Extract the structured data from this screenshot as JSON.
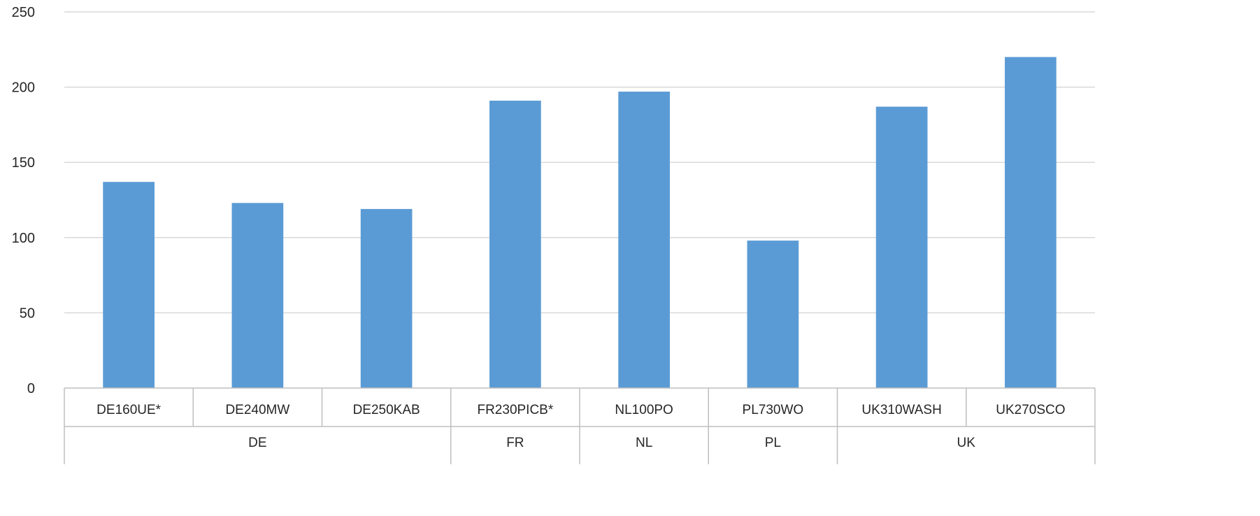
{
  "chart_data": {
    "type": "bar",
    "title": "",
    "xlabel": "",
    "ylabel": "",
    "ylim": [
      0,
      250
    ],
    "yticks": [
      0,
      50,
      100,
      150,
      200,
      250
    ],
    "grid": true,
    "legend": "none",
    "bar_color": "#5b9bd5",
    "categories": [
      "DE160UE*",
      "DE240MW",
      "DE250KAB",
      "FR230PICB*",
      "NL100PO",
      "PL730WO",
      "UK310WASH",
      "UK270SCO"
    ],
    "groups": [
      {
        "label": "DE",
        "count": 3
      },
      {
        "label": "FR",
        "count": 1
      },
      {
        "label": "NL",
        "count": 1
      },
      {
        "label": "PL",
        "count": 1
      },
      {
        "label": "UK",
        "count": 2
      }
    ],
    "values": [
      137,
      123,
      119,
      191,
      197,
      98,
      187,
      220
    ]
  }
}
